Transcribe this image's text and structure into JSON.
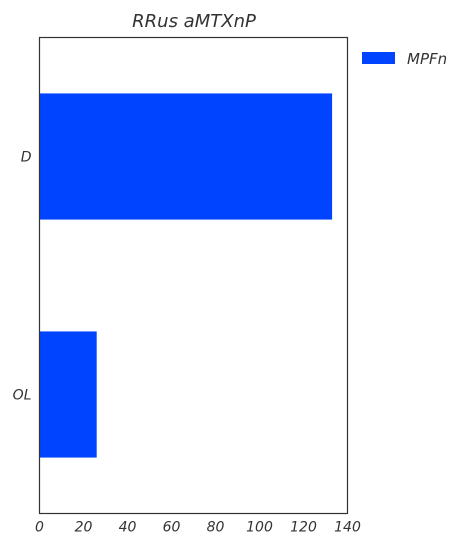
{
  "chart_data": {
    "type": "bar",
    "orientation": "horizontal",
    "title": "RRus aMTXnP",
    "categories": [
      "D",
      "OL"
    ],
    "series": [
      {
        "name": "MPFn",
        "values": [
          133,
          26
        ],
        "color": "#0044ff"
      }
    ],
    "xlim": [
      0,
      140
    ],
    "xticks": [
      0,
      20,
      40,
      60,
      80,
      100,
      120,
      140
    ],
    "xlabel": "",
    "ylabel": "",
    "grid": false,
    "legend": "outside-top-right"
  }
}
